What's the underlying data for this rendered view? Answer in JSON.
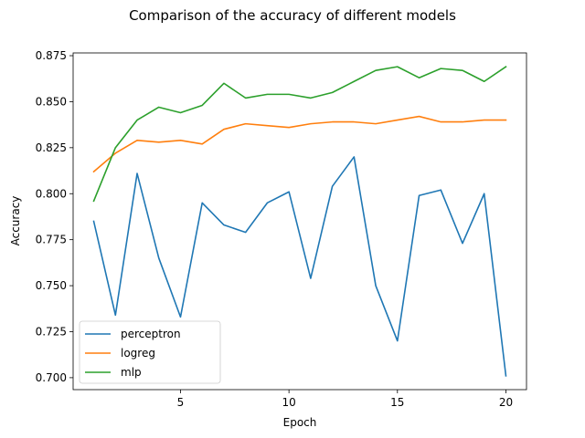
{
  "chart_data": {
    "type": "line",
    "title": "Comparison of the accuracy of different models",
    "xlabel": "Epoch",
    "ylabel": "Accuracy",
    "xlim": [
      0.05,
      20.95
    ],
    "ylim": [
      0.6935,
      0.8765
    ],
    "xticks": [
      5,
      10,
      15,
      20
    ],
    "yticks": [
      0.7,
      0.725,
      0.75,
      0.775,
      0.8,
      0.825,
      0.85,
      0.875
    ],
    "ytick_labels": [
      "0.700",
      "0.725",
      "0.750",
      "0.775",
      "0.800",
      "0.825",
      "0.850",
      "0.875"
    ],
    "grid": false,
    "legend_position": "lower-left",
    "x": [
      1,
      2,
      3,
      4,
      5,
      6,
      7,
      8,
      9,
      10,
      11,
      12,
      13,
      14,
      15,
      16,
      17,
      18,
      19,
      20
    ],
    "series": [
      {
        "name": "perceptron",
        "color": "#1f77b4",
        "values": [
          0.785,
          0.734,
          0.811,
          0.765,
          0.733,
          0.795,
          0.783,
          0.779,
          0.795,
          0.801,
          0.754,
          0.804,
          0.82,
          0.75,
          0.72,
          0.799,
          0.802,
          0.773,
          0.8,
          0.701
        ]
      },
      {
        "name": "logreg",
        "color": "#ff7f0e",
        "values": [
          0.812,
          0.822,
          0.829,
          0.828,
          0.829,
          0.827,
          0.835,
          0.838,
          0.837,
          0.836,
          0.838,
          0.839,
          0.839,
          0.838,
          0.84,
          0.842,
          0.839,
          0.839,
          0.84,
          0.84
        ]
      },
      {
        "name": "mlp",
        "color": "#2ca02c",
        "values": [
          0.796,
          0.825,
          0.84,
          0.847,
          0.844,
          0.848,
          0.86,
          0.852,
          0.854,
          0.854,
          0.852,
          0.855,
          0.861,
          0.867,
          0.869,
          0.863,
          0.868,
          0.867,
          0.861,
          0.869
        ]
      }
    ]
  }
}
